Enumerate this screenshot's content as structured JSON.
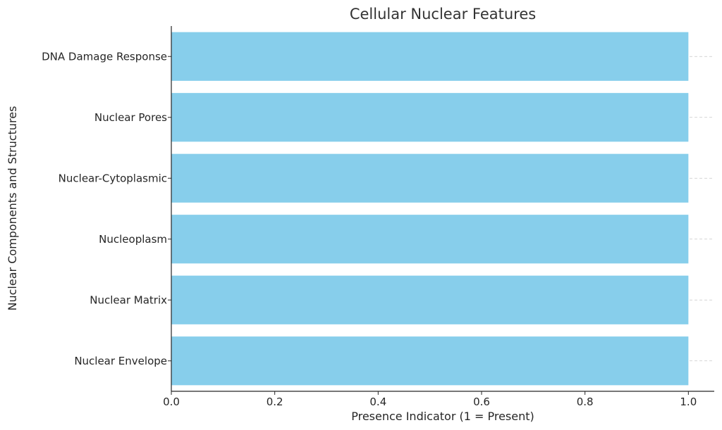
{
  "chart_data": {
    "type": "bar",
    "orientation": "horizontal",
    "title": "Cellular Nuclear Features",
    "xlabel": "Presence Indicator (1 = Present)",
    "ylabel": "Nuclear Components and Structures",
    "categories": [
      "Nuclear Envelope",
      "Nuclear Matrix",
      "Nucleoplasm",
      "Nuclear-Cytoplasmic",
      "Nuclear Pores",
      "DNA Damage Response"
    ],
    "values": [
      1,
      1,
      1,
      1,
      1,
      1
    ],
    "xlim": [
      0,
      1.05
    ],
    "xticks": [
      "0.0",
      "0.2",
      "0.4",
      "0.6",
      "0.8",
      "1.0"
    ],
    "grid": "x-dashed",
    "bar_color": "#87CEEB"
  }
}
